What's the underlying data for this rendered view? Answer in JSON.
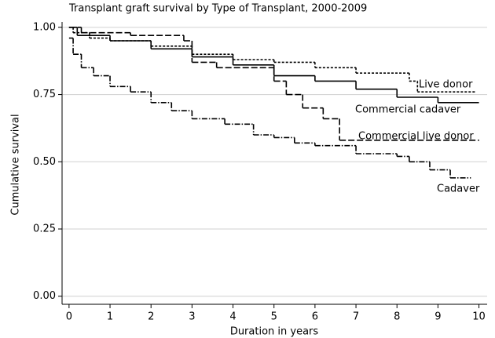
{
  "chart_data": {
    "type": "step",
    "title": "Transplant graft survival by Type of Transplant, 2000-2009",
    "x_label": "Duration in years",
    "y_label": "Cumulative survival",
    "xlim": [
      -0.17,
      10.2
    ],
    "ylim": [
      -0.03,
      1.02
    ],
    "xticks": [
      0,
      1,
      2,
      3,
      4,
      5,
      6,
      7,
      8,
      9,
      10
    ],
    "yticks": [
      {
        "value": 0,
        "label": "0.00"
      },
      {
        "value": 0.25,
        "label": "0.25"
      },
      {
        "value": 0.5,
        "label": "0.50"
      },
      {
        "value": 0.75,
        "label": "0.75"
      },
      {
        "value": 1,
        "label": "1.00"
      }
    ],
    "grid": true,
    "series": [
      {
        "name": "Live donor",
        "color": "#000000",
        "dash": "3,2",
        "x": [
          0,
          0.1,
          0.5,
          1,
          2,
          3,
          4,
          5,
          6,
          7,
          8.3,
          8.5,
          9.9
        ],
        "values": [
          1.0,
          0.98,
          0.96,
          0.95,
          0.93,
          0.9,
          0.88,
          0.87,
          0.85,
          0.83,
          0.8,
          0.76,
          0.76
        ]
      },
      {
        "name": "Commercial cadaver",
        "color": "#000000",
        "dash": "none",
        "x": [
          0,
          0.2,
          1,
          2,
          3,
          4,
          5,
          6,
          7,
          8,
          9,
          10
        ],
        "values": [
          1.0,
          0.97,
          0.95,
          0.92,
          0.89,
          0.86,
          0.82,
          0.8,
          0.77,
          0.74,
          0.72,
          0.72
        ]
      },
      {
        "name": "Commercial live donor",
        "color": "#000000",
        "dash": "8,3",
        "x": [
          0,
          0.3,
          1.5,
          2.8,
          3,
          3.6,
          5,
          5.3,
          5.7,
          6.2,
          6.6,
          10
        ],
        "values": [
          1.0,
          0.98,
          0.97,
          0.95,
          0.87,
          0.85,
          0.8,
          0.75,
          0.7,
          0.66,
          0.58,
          0.58
        ]
      },
      {
        "name": "Cadaver",
        "color": "#000000",
        "dash": "7,2,1.5,2",
        "x": [
          0,
          0.1,
          0.3,
          0.6,
          1,
          1.5,
          2,
          2.5,
          3,
          3.8,
          4.5,
          5,
          5.5,
          6,
          7,
          8,
          8.3,
          8.8,
          9.3,
          9.8
        ],
        "values": [
          0.96,
          0.9,
          0.85,
          0.82,
          0.78,
          0.76,
          0.72,
          0.69,
          0.66,
          0.64,
          0.6,
          0.59,
          0.57,
          0.56,
          0.53,
          0.52,
          0.5,
          0.47,
          0.44,
          0.44
        ]
      }
    ]
  }
}
